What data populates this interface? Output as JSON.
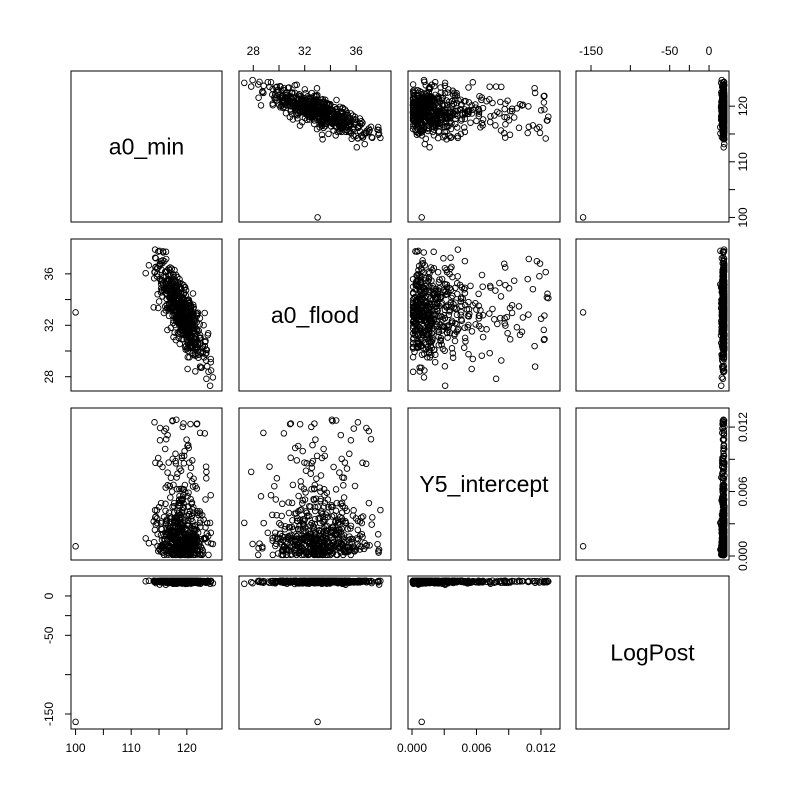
{
  "chart_data": {
    "type": "scatter",
    "variables": [
      "a0_min",
      "a0_flood",
      "Y5_intercept",
      "LogPost"
    ],
    "variable_ticks": {
      "a0_min": [
        "100",
        "110",
        "120"
      ],
      "a0_flood": [
        "28",
        "32",
        "36"
      ],
      "Y5_intercept": [
        "0.000",
        "0.006",
        "0.012"
      ],
      "LogPost": [
        "-150",
        "-50",
        "0"
      ]
    },
    "variable_ranges": {
      "a0_min": [
        99.9,
        125.6
      ],
      "a0_flood": [
        27.2,
        38.4
      ],
      "Y5_intercept": [
        0.0,
        0.0134
      ],
      "LogPost": [
        -164,
        20.3
      ]
    },
    "outlier": {
      "a0_min": 100,
      "a0_flood": 33,
      "Y5_intercept": 0.0009,
      "LogPost": -160
    },
    "cluster_summary": {
      "a0_min_vs_a0_flood": "strong negative correlation: a0_min 113 to 125 as a0_flood falls from 38.5 to 27.3",
      "Y5_intercept": "mostly 0.000 to 0.006, tail to 0.013",
      "LogPost": "mostly 14 to 20"
    },
    "grid": false,
    "legend": "none"
  }
}
